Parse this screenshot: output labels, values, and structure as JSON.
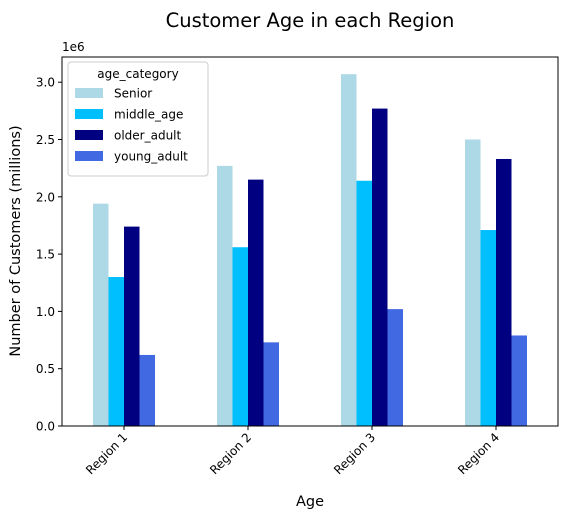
{
  "chart_data": {
    "type": "bar",
    "title": "Customer Age in each Region",
    "xlabel": "Age",
    "ylabel": "Number of Customers (millions)",
    "y_offset_label": "1e6",
    "categories": [
      "Region 1",
      "Region 2",
      "Region 3",
      "Region 4"
    ],
    "ylim": [
      0,
      3220000
    ],
    "yticks": [
      0,
      500000,
      1000000,
      1500000,
      2000000,
      2500000,
      3000000
    ],
    "ytick_labels": [
      "0.0",
      "0.5",
      "1.0",
      "1.5",
      "2.0",
      "2.5",
      "3.0"
    ],
    "grid": false,
    "legend": {
      "title": "age_category",
      "placement": "top-left"
    },
    "series": [
      {
        "name": "Senior",
        "color": "#add8e6",
        "values": [
          1940000,
          2270000,
          3070000,
          2500000
        ]
      },
      {
        "name": "middle_age",
        "color": "#00bfff",
        "values": [
          1300000,
          1560000,
          2140000,
          1710000
        ]
      },
      {
        "name": "older_adult",
        "color": "#000080",
        "values": [
          1740000,
          2150000,
          2770000,
          2330000
        ]
      },
      {
        "name": "young_adult",
        "color": "#4169e1",
        "values": [
          620000,
          730000,
          1020000,
          790000
        ]
      }
    ]
  }
}
